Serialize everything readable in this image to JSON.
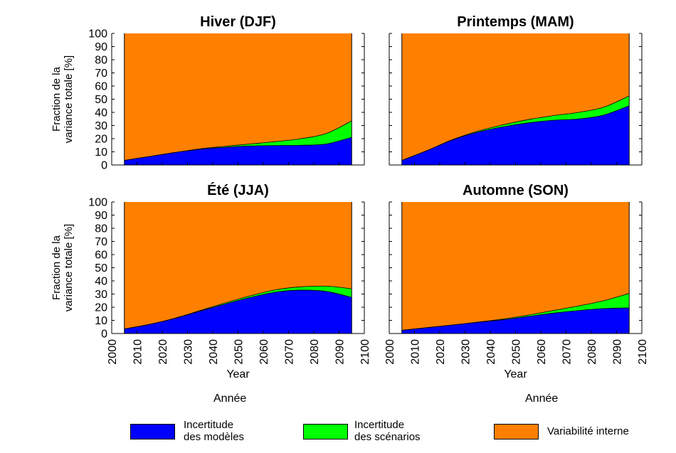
{
  "colors": {
    "model": "#0000ff",
    "scenario": "#00ff00",
    "internal": "#ff8000",
    "axis": "#000000"
  },
  "shared": {
    "ylabel_line1": "Fraction de la",
    "ylabel_line2": "variance totale [%]",
    "xlabel": "Year",
    "x_ticks": [
      "2000",
      "2010",
      "2020",
      "2030",
      "2040",
      "2050",
      "2060",
      "2070",
      "2080",
      "2090",
      "2100"
    ],
    "y_ticks": [
      "0",
      "10",
      "20",
      "30",
      "40",
      "50",
      "60",
      "70",
      "80",
      "90",
      "100"
    ],
    "xlim": [
      2000,
      2100
    ],
    "ylim": [
      0,
      100
    ],
    "bottom_label_left": "Année",
    "bottom_label_right": "Année"
  },
  "legend": {
    "items": [
      {
        "line1": "Incertitude",
        "line2": "des modèles",
        "color_key": "model"
      },
      {
        "line1": "Incertitude",
        "line2": "des scénarios",
        "color_key": "scenario"
      },
      {
        "line1": "Variabilité interne",
        "line2": "",
        "color_key": "internal"
      }
    ]
  },
  "chart_data": [
    {
      "type": "area",
      "title": "Hiver (DJF)",
      "x": [
        2005,
        2015,
        2025,
        2035,
        2045,
        2055,
        2065,
        2075,
        2085,
        2095
      ],
      "series": [
        {
          "name": "Incertitude des modèles",
          "values": [
            3.5,
            6.5,
            9.5,
            12,
            13.5,
            14.5,
            14.8,
            15,
            16,
            21
          ]
        },
        {
          "name": "Incertitude des scénarios",
          "values": [
            0,
            0,
            0,
            0.3,
            0.7,
            1.5,
            3,
            5,
            8,
            12.5
          ]
        },
        {
          "name": "Variabilité interne",
          "values": [
            96.5,
            93.5,
            90.5,
            87.7,
            85.8,
            84,
            82.2,
            80,
            76,
            66.5
          ]
        }
      ]
    },
    {
      "type": "area",
      "title": "Printemps (MAM)",
      "x": [
        2005,
        2015,
        2025,
        2035,
        2045,
        2055,
        2065,
        2075,
        2085,
        2095
      ],
      "series": [
        {
          "name": "Incertitude des modèles",
          "values": [
            3.5,
            11,
            19,
            25,
            29,
            32,
            34,
            35,
            38,
            45
          ]
        },
        {
          "name": "Incertitude des scénarios",
          "values": [
            0,
            0,
            0.3,
            0.7,
            1.5,
            2.5,
            3.5,
            5,
            6,
            7.5
          ]
        },
        {
          "name": "Variabilité interne",
          "values": [
            96.5,
            89,
            80.7,
            74.3,
            69.5,
            65.5,
            62.5,
            60,
            56,
            47.5
          ]
        }
      ]
    },
    {
      "type": "area",
      "title": "Été (JJA)",
      "x": [
        2005,
        2015,
        2025,
        2035,
        2045,
        2055,
        2065,
        2075,
        2085,
        2095
      ],
      "series": [
        {
          "name": "Incertitude des modèles",
          "values": [
            3.5,
            7,
            11.5,
            17,
            22.5,
            27.5,
            31.5,
            33,
            32,
            27.5
          ]
        },
        {
          "name": "Incertitude des scénarios",
          "values": [
            0,
            0,
            0.2,
            0.5,
            0.8,
            1.2,
            1.8,
            2.5,
            4,
            6.5
          ]
        },
        {
          "name": "Variabilité interne",
          "values": [
            96.5,
            93,
            88.3,
            82.5,
            76.7,
            71.3,
            66.7,
            64.5,
            64,
            66
          ]
        }
      ]
    },
    {
      "type": "area",
      "title": "Automne (SON)",
      "x": [
        2005,
        2015,
        2025,
        2035,
        2045,
        2055,
        2065,
        2075,
        2085,
        2095
      ],
      "series": [
        {
          "name": "Incertitude des modèles",
          "values": [
            2.5,
            4.5,
            6.5,
            8.5,
            10.5,
            13,
            15.5,
            17.5,
            19,
            19.5
          ]
        },
        {
          "name": "Incertitude des scénarios",
          "values": [
            0,
            0,
            0,
            0.2,
            0.5,
            1,
            2,
            3.5,
            6,
            11
          ]
        },
        {
          "name": "Variabilité interne",
          "values": [
            97.5,
            95.5,
            93.5,
            91.3,
            89,
            86,
            82.5,
            79,
            75,
            69.5
          ]
        }
      ]
    }
  ]
}
